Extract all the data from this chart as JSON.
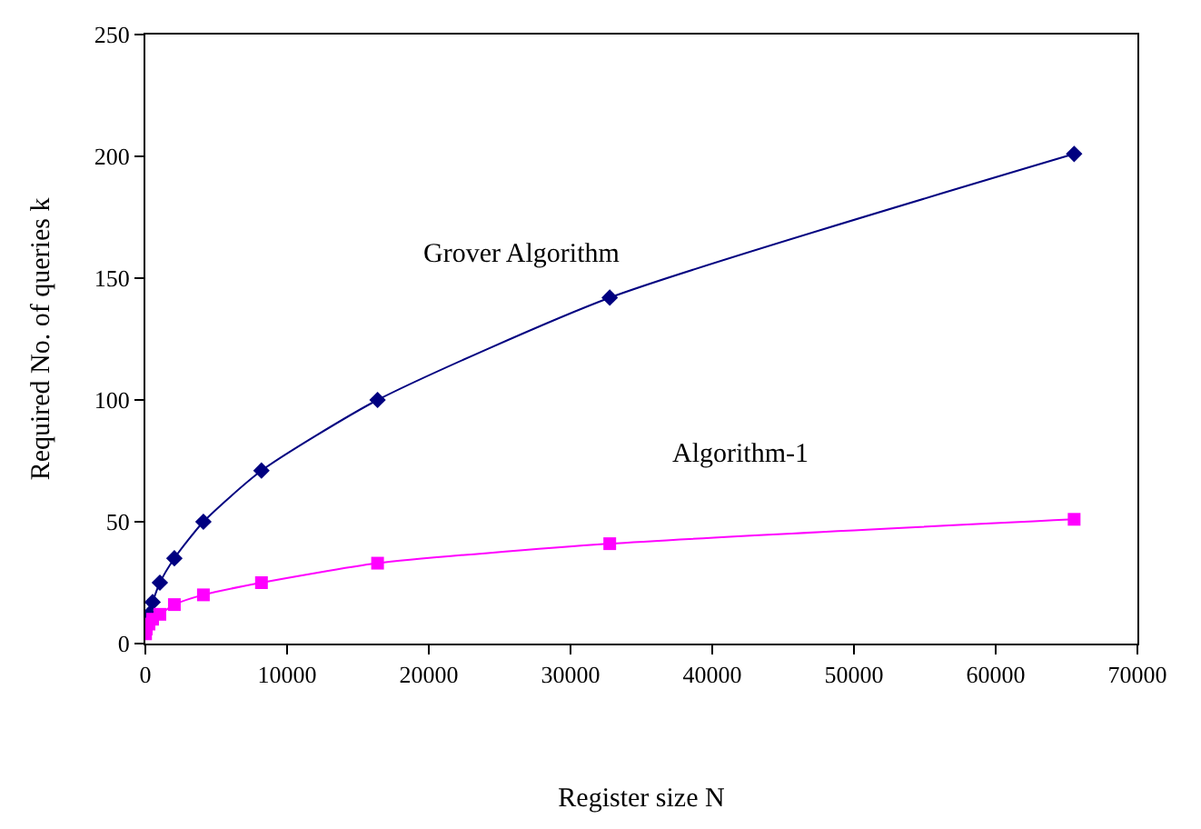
{
  "chart_data": {
    "type": "line",
    "xlabel": "Register size N",
    "ylabel": "Required No. of queries k",
    "xlim": [
      0,
      70000
    ],
    "xticks": [
      0,
      10000,
      20000,
      30000,
      40000,
      50000,
      60000,
      70000
    ],
    "ylim": [
      0,
      250
    ],
    "yticks": [
      0,
      50,
      100,
      150,
      200,
      250
    ],
    "legend": false,
    "series": [
      {
        "name": "Grover Algorithm",
        "color": "#000080",
        "marker": "diamond",
        "x": [
          256,
          512,
          1024,
          2048,
          4096,
          8192,
          16384,
          32768,
          65536
        ],
        "values": [
          12,
          17,
          25,
          35,
          50,
          71,
          100,
          142,
          201
        ]
      },
      {
        "name": "Algorithm-1",
        "color": "#ff00ff",
        "marker": "square",
        "x": [
          16,
          64,
          256,
          512,
          1024,
          2048,
          4096,
          8192,
          16384,
          32768,
          65536
        ],
        "values": [
          4,
          6,
          8,
          10,
          12,
          16,
          20,
          25,
          33,
          41,
          51
        ]
      }
    ]
  }
}
